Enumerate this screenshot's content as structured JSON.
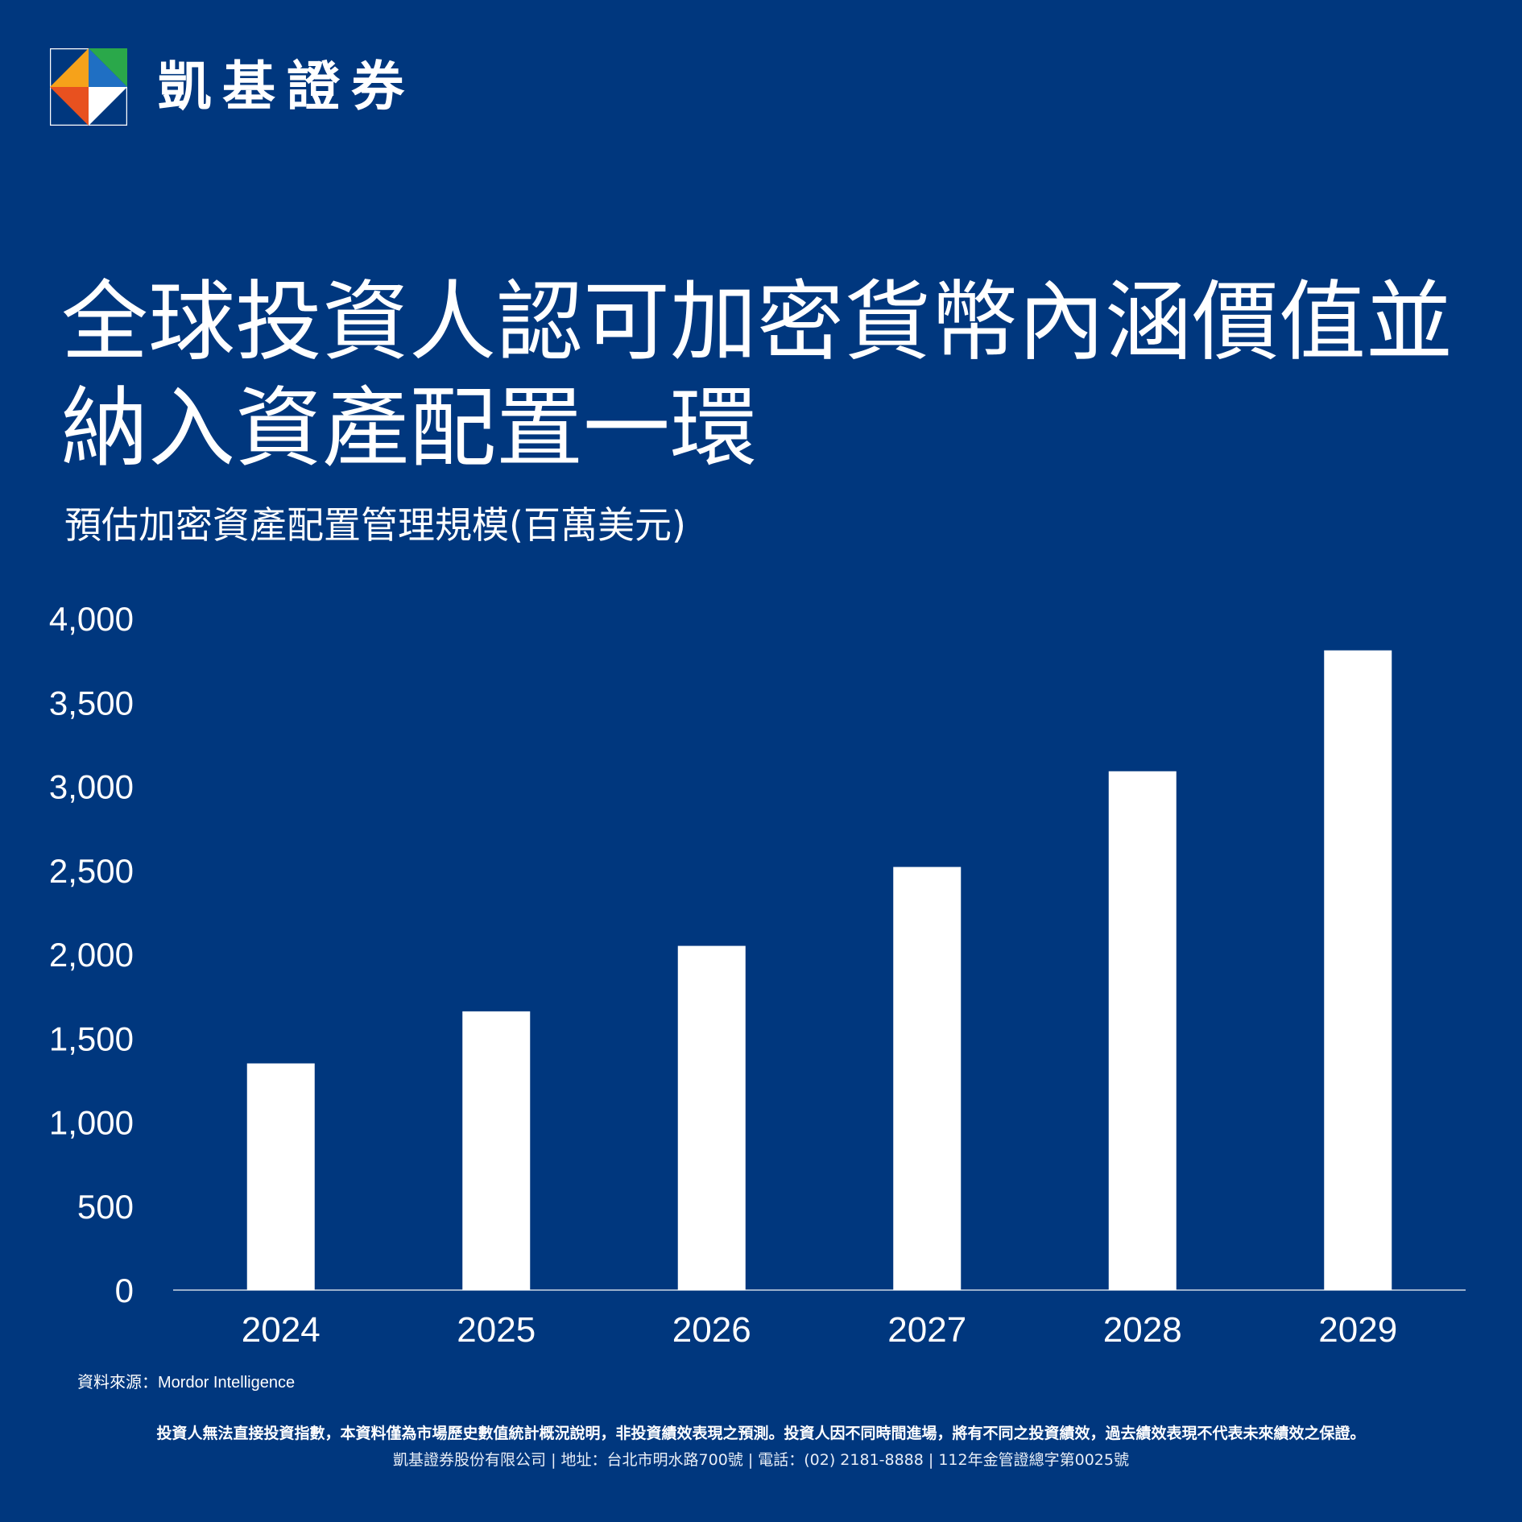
{
  "brand": {
    "name": "凱基證券",
    "logo_colors": [
      "#2aa84a",
      "#1f6fc3",
      "#e8511f",
      "#f6a21a",
      "#ffffff"
    ]
  },
  "headline": {
    "line1": "全球投資人認可加密貨幣內涵價值並",
    "line2": "納入資產配置一環"
  },
  "chart_data": {
    "type": "bar",
    "title": "預估加密資產配置管理規模(百萬美元)",
    "categories": [
      "2024",
      "2025",
      "2026",
      "2027",
      "2028",
      "2029"
    ],
    "values": [
      1350,
      1660,
      2050,
      2520,
      3090,
      3810
    ],
    "ylim": [
      0,
      4000
    ],
    "yticks": [
      0,
      500,
      1000,
      1500,
      2000,
      2500,
      3000,
      3500,
      4000
    ],
    "ytick_labels": [
      "0",
      "500",
      "1,000",
      "1,500",
      "2,000",
      "2,500",
      "3,000",
      "3,500",
      "4,000"
    ],
    "grid": false,
    "bar_color": "#ffffff"
  },
  "source": "資料來源：Mordor Intelligence",
  "disclaimer": "投資人無法直接投資指數，本資料僅為市場歷史數值統計概況說明，非投資績效表現之預測。投資人因不同時間進場，將有不同之投資績效，過去績效表現不代表未來績效之保證。",
  "footer": "凱基證券股份有限公司 | 地址：台北市明水路700號 | 電話：(02) 2181-8888 | 112年金管證總字第0025號"
}
